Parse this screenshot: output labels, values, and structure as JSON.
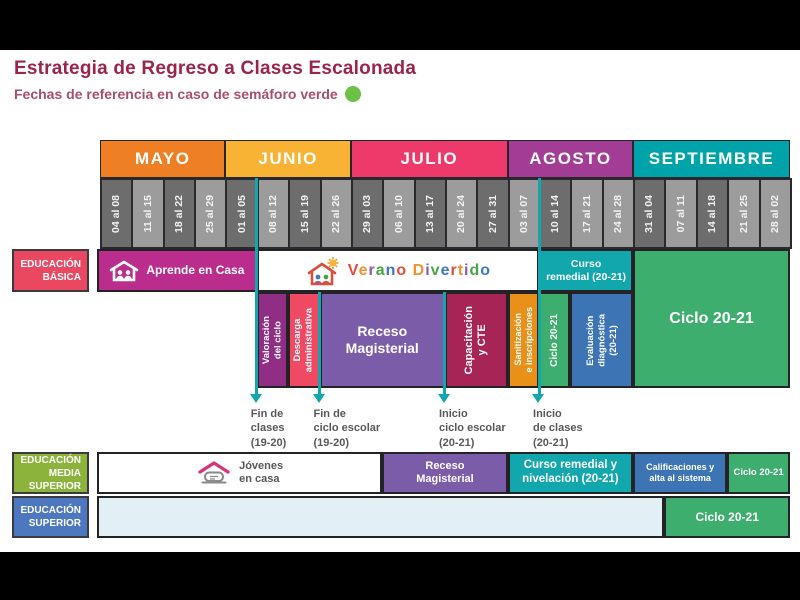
{
  "page": {
    "title": "Estrategia de Regreso a Clases Escalonada",
    "subtitle": "Fechas de referencia en caso de semáforo verde",
    "semaforo_color": "#6CBF47"
  },
  "chart_data": {
    "type": "table",
    "title": "Estrategia de Regreso a Clases Escalonada",
    "subtitle": "Fechas de referencia en caso de semáforo verde",
    "x_axis_unit": "semanas",
    "months": [
      {
        "label": "MAYO",
        "weeks": 4,
        "color": "#EE7F24"
      },
      {
        "label": "JUNIO",
        "weeks": 4,
        "color": "#F8B234"
      },
      {
        "label": "JULIO",
        "weeks": 5,
        "color": "#EE3A6B"
      },
      {
        "label": "AGOSTO",
        "weeks": 4,
        "color": "#A23C94"
      },
      {
        "label": "SEPTIEMBRE",
        "weeks": 5,
        "color": "#00A3A9"
      }
    ],
    "weeks": [
      {
        "label": "04 al 08",
        "shade": "dark"
      },
      {
        "label": "11 al 15",
        "shade": "light"
      },
      {
        "label": "18 al 22",
        "shade": "dark"
      },
      {
        "label": "25 al 29",
        "shade": "light"
      },
      {
        "label": "01 al 05",
        "shade": "dark"
      },
      {
        "label": "08 al 12",
        "shade": "light"
      },
      {
        "label": "15 al 19",
        "shade": "dark"
      },
      {
        "label": "22 al 26",
        "shade": "light"
      },
      {
        "label": "29 al 03",
        "shade": "dark"
      },
      {
        "label": "06 al 10",
        "shade": "light"
      },
      {
        "label": "13 al 17",
        "shade": "dark"
      },
      {
        "label": "20 al 24",
        "shade": "light"
      },
      {
        "label": "27 al 31",
        "shade": "dark"
      },
      {
        "label": "03 al 07",
        "shade": "light"
      },
      {
        "label": "10 al 14",
        "shade": "dark"
      },
      {
        "label": "17 al 21",
        "shade": "light"
      },
      {
        "label": "24 al 28",
        "shade": "light"
      },
      {
        "label": "31 al 04",
        "shade": "dark"
      },
      {
        "label": "07 al 11",
        "shade": "light"
      },
      {
        "label": "14 al 18",
        "shade": "dark"
      },
      {
        "label": "21 al 25",
        "shade": "light"
      },
      {
        "label": "28 al 02",
        "shade": "light"
      }
    ],
    "rows": [
      {
        "id": "educacion-basica",
        "label": "EDUCACIÓN\nBÁSICA",
        "label_color": "#E94860",
        "label_band": "r1",
        "segments": [
          {
            "label": "Aprende en Casa",
            "start": 0,
            "end": 5,
            "color": "#BB2D8D",
            "band": "r1",
            "logo": "aprende",
            "font": 12
          },
          {
            "label": "Verano Divertido",
            "start": 5,
            "end": 14,
            "color": "#FFFFFF",
            "band": "r1",
            "logo": "verano"
          },
          {
            "label": "Curso\nremedial (20-21)",
            "start": 14,
            "end": 17,
            "color": "#12A7AC",
            "band": "r1",
            "font": 10.5
          },
          {
            "label": "Ciclo 20-21",
            "start": 17,
            "end": 22,
            "color": "#3EAE6E",
            "band": "span",
            "font": 16
          },
          {
            "label": "Valoración\ndel ciclo",
            "start": 5,
            "end": 6,
            "color": "#8F2E84",
            "band": "r2",
            "vertical": true,
            "font": 9.5
          },
          {
            "label": "Descarga\nadministrativa",
            "start": 6,
            "end": 7,
            "color": "#EF4964",
            "band": "r2",
            "vertical": true,
            "font": 9.5
          },
          {
            "label": "Receso\nMagisterial",
            "start": 7,
            "end": 11,
            "color": "#7A5CA8",
            "band": "r2",
            "font": 14
          },
          {
            "label": "Capacitación\ny CTE",
            "start": 11,
            "end": 13,
            "color": "#A62456",
            "band": "r2",
            "vertical": true,
            "font": 11
          },
          {
            "label": "Sanitización\ne inscripciones",
            "start": 13,
            "end": 14,
            "color": "#E89018",
            "band": "r2",
            "vertical": true,
            "font": 9
          },
          {
            "label": "Ciclo 20-21",
            "start": 14,
            "end": 15,
            "color": "#3EAE6E",
            "band": "r2",
            "vertical": true,
            "font": 10
          },
          {
            "label": "Evaluación\ndiagnóstica\n(20-21)",
            "start": 15,
            "end": 17,
            "color": "#3C74B4",
            "band": "r2",
            "vertical": true,
            "font": 9.5
          }
        ]
      },
      {
        "id": "educacion-media-superior",
        "label": "EDUCACIÓN\nMEDIA\nSUPERIOR",
        "label_color": "#8CB43C",
        "label_band": "media",
        "segments": [
          {
            "label": "Jóvenes\nen casa",
            "start": 0,
            "end": 9,
            "color": "#FFFFFF",
            "band": "media",
            "logo": "jovenes"
          },
          {
            "label": "Receso\nMagisterial",
            "start": 9,
            "end": 13,
            "color": "#7A5CA8",
            "band": "media",
            "font": 11
          },
          {
            "label": "Curso remedial y\nnivelación (20-21)",
            "start": 13,
            "end": 17,
            "color": "#12A7AC",
            "band": "media",
            "font": 11.5
          },
          {
            "label": "Calificaciones y\nalta al sistema",
            "start": 17,
            "end": 20,
            "color": "#3C74B4",
            "band": "media",
            "font": 9
          },
          {
            "label": "Ciclo 20-21",
            "start": 20,
            "end": 22,
            "color": "#3EAE6E",
            "band": "media",
            "font": 9.5
          }
        ]
      },
      {
        "id": "educacion-superior",
        "label": "EDUCACIÓN\nSUPERIOR",
        "label_color": "#4D77BE",
        "label_band": "superior",
        "segments": [
          {
            "label": "",
            "start": 0,
            "end": 18,
            "color": "#E2F0F5",
            "band": "superior"
          },
          {
            "label": "Ciclo 20-21",
            "start": 18,
            "end": 22,
            "color": "#3EAE6E",
            "band": "superior",
            "font": 12
          }
        ]
      }
    ],
    "markers": [
      {
        "label": "Fin de\nclases\n(19-20)",
        "week": 5,
        "from": "dates"
      },
      {
        "label": "Fin de\nciclo escolar\n(19-20)",
        "week": 7,
        "from": "r2"
      },
      {
        "label": "Inicio\nciclo escolar\n(20-21)",
        "week": 11,
        "from": "r2"
      },
      {
        "label": "Inicio\nde clases\n(20-21)",
        "week": 14,
        "from": "dates"
      }
    ],
    "verano_palette": [
      "#E54B3C",
      "#F0932D",
      "#8E5BA6",
      "#4AA546",
      "#3D78C0"
    ],
    "accent_teal": "#12A7AC"
  }
}
